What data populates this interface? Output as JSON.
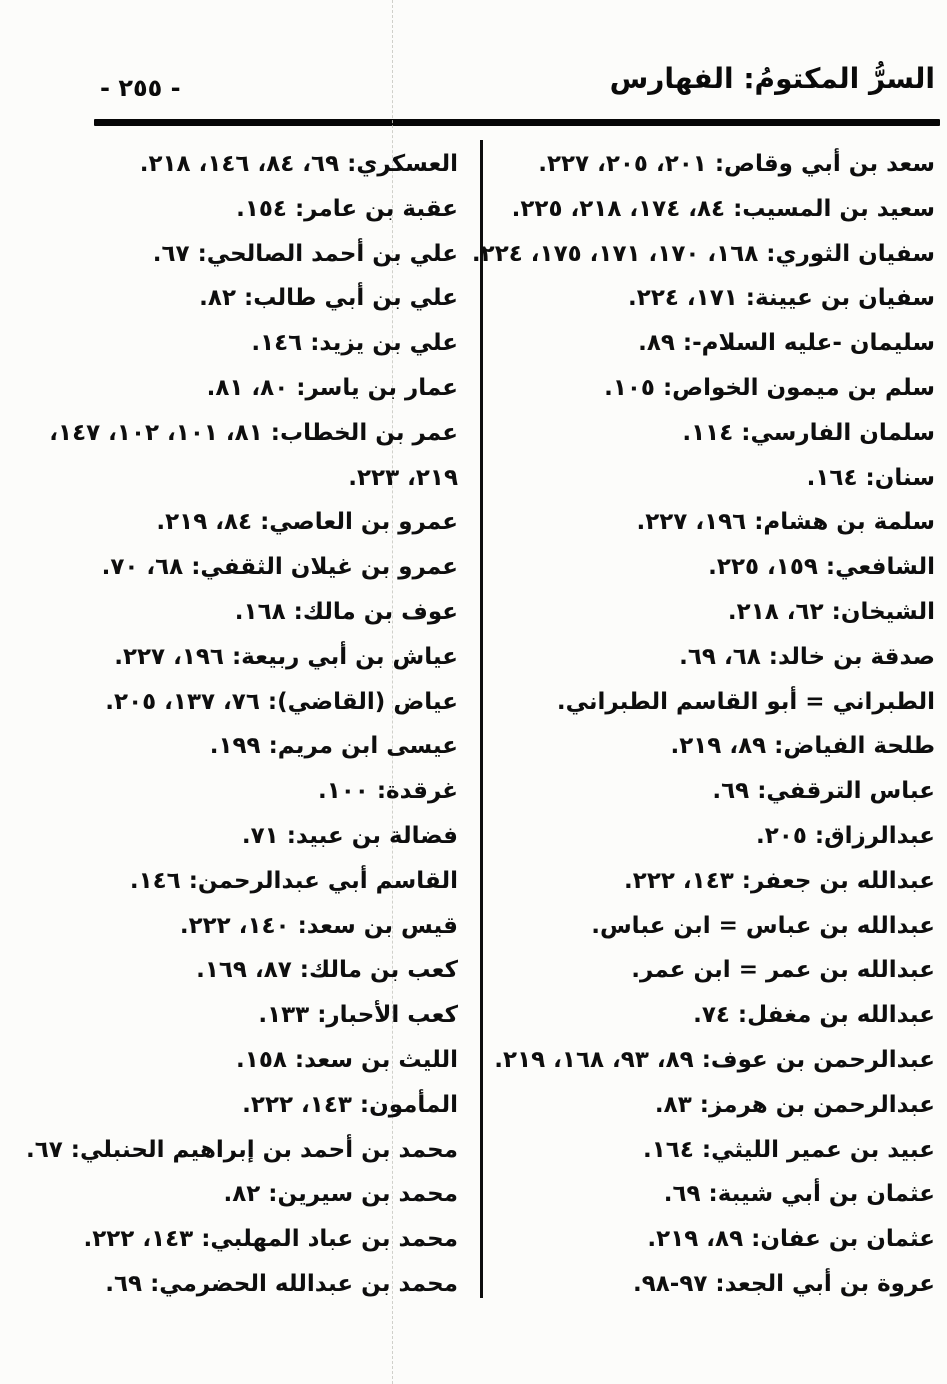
{
  "header": {
    "title": "السرُّ المكتومُ: الفهارس",
    "page_number": "- ٢٥٥ -"
  },
  "index": {
    "columns": [
      {
        "id": "right-column",
        "entries": [
          {
            "lines": [
              "سعد بن أبي وقاص: ٢٠١، ٢٠٥، ٢٢٧."
            ]
          },
          {
            "lines": [
              "سعيد بن المسيب: ٨٤، ١٧٤، ٢١٨، ٢٢٥."
            ]
          },
          {
            "lines": [
              "سفيان الثوري: ١٦٨، ١٧٠، ١٧١، ١٧٥، ٢٢٤."
            ]
          },
          {
            "lines": [
              "سفيان بن عيينة: ١٧١، ٢٢٤."
            ]
          },
          {
            "lines": [
              "سليمان -عليه السلام-: ٨٩."
            ]
          },
          {
            "lines": [
              "سلم بن ميمون الخواص: ١٠٥."
            ]
          },
          {
            "lines": [
              "سلمان الفارسي: ١١٤."
            ]
          },
          {
            "lines": [
              "سنان: ١٦٤."
            ]
          },
          {
            "lines": [
              "سلمة بن هشام: ١٩٦، ٢٢٧."
            ]
          },
          {
            "lines": [
              "الشافعي: ١٥٩، ٢٢٥."
            ]
          },
          {
            "lines": [
              "الشيخان: ٦٢، ٢١٨."
            ]
          },
          {
            "lines": [
              "صدقة بن خالد: ٦٨، ٦٩."
            ]
          },
          {
            "lines": [
              "الطبراني = أبو القاسم الطبراني."
            ]
          },
          {
            "lines": [
              "طلحة الفياض: ٨٩، ٢١٩."
            ]
          },
          {
            "lines": [
              "عباس الترقفي: ٦٩."
            ]
          },
          {
            "lines": [
              "عبدالرزاق: ٢٠٥."
            ]
          },
          {
            "lines": [
              "عبدالله بن جعفر: ١٤٣، ٢٢٢."
            ]
          },
          {
            "lines": [
              "عبدالله بن عباس = ابن عباس."
            ]
          },
          {
            "lines": [
              "عبدالله بن عمر = ابن عمر."
            ]
          },
          {
            "lines": [
              "عبدالله بن مغفل: ٧٤."
            ]
          },
          {
            "lines": [
              "عبدالرحمن بن عوف: ٨٩، ٩٣، ١٦٨، ٢١٩."
            ]
          },
          {
            "lines": [
              "عبدالرحمن بن هرمز: ٨٣."
            ]
          },
          {
            "lines": [
              "عبيد بن عمير الليثي: ١٦٤."
            ]
          },
          {
            "lines": [
              "عثمان بن أبي شيبة: ٦٩."
            ]
          },
          {
            "lines": [
              "عثمان بن عفان: ٨٩، ٢١٩."
            ]
          },
          {
            "lines": [
              "عروة بن أبي الجعد: ٩٧-٩٨."
            ]
          }
        ]
      },
      {
        "id": "left-column",
        "entries": [
          {
            "lines": [
              "العسكري: ٦٩، ٨٤، ١٤٦، ٢١٨."
            ]
          },
          {
            "lines": [
              "عقبة بن عامر: ١٥٤."
            ]
          },
          {
            "lines": [
              "علي بن أحمد الصالحي: ٦٧."
            ]
          },
          {
            "lines": [
              "علي بن أبي طالب: ٨٢."
            ]
          },
          {
            "lines": [
              "علي بن يزيد: ١٤٦."
            ]
          },
          {
            "lines": [
              "عمار بن ياسر: ٨٠، ٨١."
            ]
          },
          {
            "lines": [
              "عمر بن الخطاب: ٨١، ١٠١، ١٠٢، ١٤٧،",
              "٢١٩، ٢٢٣."
            ]
          },
          {
            "lines": [
              "عمرو بن العاصي: ٨٤، ٢١٩."
            ]
          },
          {
            "lines": [
              "عمرو بن غيلان الثقفي: ٦٨، ٧٠."
            ]
          },
          {
            "lines": [
              "عوف بن مالك: ١٦٨."
            ]
          },
          {
            "lines": [
              "عياش بن أبي ربيعة: ١٩٦، ٢٢٧."
            ]
          },
          {
            "lines": [
              "عياض (القاضي): ٧٦، ١٣٧، ٢٠٥."
            ]
          },
          {
            "lines": [
              "عيسى ابن مريم: ١٩٩."
            ]
          },
          {
            "lines": [
              "غرقدة: ١٠٠."
            ]
          },
          {
            "lines": [
              "فضالة بن عبيد: ٧١."
            ]
          },
          {
            "lines": [
              "القاسم أبي عبدالرحمن: ١٤٦."
            ]
          },
          {
            "lines": [
              "قيس بن سعد: ١٤٠، ٢٢٢."
            ]
          },
          {
            "lines": [
              "كعب بن مالك: ٨٧، ١٦٩."
            ]
          },
          {
            "lines": [
              "كعب الأحبار: ١٣٣."
            ]
          },
          {
            "lines": [
              "الليث بن سعد: ١٥٨."
            ]
          },
          {
            "lines": [
              "المأمون: ١٤٣، ٢٢٢."
            ]
          },
          {
            "lines": [
              "محمد بن أحمد بن إبراهيم الحنبلي: ٦٧."
            ]
          },
          {
            "lines": [
              "محمد بن سيرين: ٨٢."
            ]
          },
          {
            "lines": [
              "محمد بن عباد المهلبي: ١٤٣، ٢٢٢."
            ]
          },
          {
            "lines": [
              "محمد بن عبدالله الحضرمي: ٦٩."
            ]
          }
        ]
      }
    ]
  }
}
